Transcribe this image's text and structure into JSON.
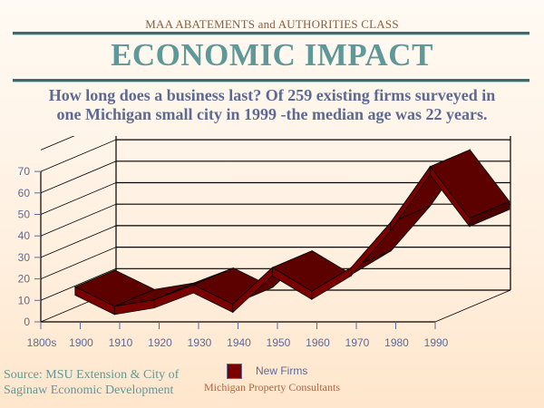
{
  "header": {
    "course": "MAA ABATEMENTS and AUTHORITIES CLASS",
    "title": "ECONOMIC IMPACT",
    "question_line1": "How long does a business last?  Of 259 existing firms surveyed in",
    "question_line2": "one Michigan small city in 1999 -the median age was  22 years."
  },
  "footer": {
    "source_line1": "Source:  MSU Extension & City of",
    "source_line2": "Saginaw Economic Development",
    "credit": "Michigan Property Consultants"
  },
  "colors": {
    "series": "#7a0000",
    "title": "#5f9898",
    "question": "#5d6a95",
    "axis_text": "#5d6a95"
  },
  "chart_data": {
    "type": "line",
    "style": "3d-ribbon",
    "title": "",
    "xlabel": "",
    "ylabel": "",
    "categories": [
      "1800s",
      "1900",
      "1910",
      "1920",
      "1930",
      "1940",
      "1950",
      "1960",
      "1970",
      "1980",
      "1990"
    ],
    "series": [
      {
        "name": "New Firms",
        "values": [
          13,
          4,
          7,
          14,
          5,
          22,
          11,
          22,
          43,
          69,
          45
        ]
      }
    ],
    "yticks": [
      0,
      10,
      20,
      30,
      40,
      50,
      60,
      70
    ],
    "ylim": [
      0,
      80
    ],
    "grid": true,
    "legend": "bottom-center"
  }
}
